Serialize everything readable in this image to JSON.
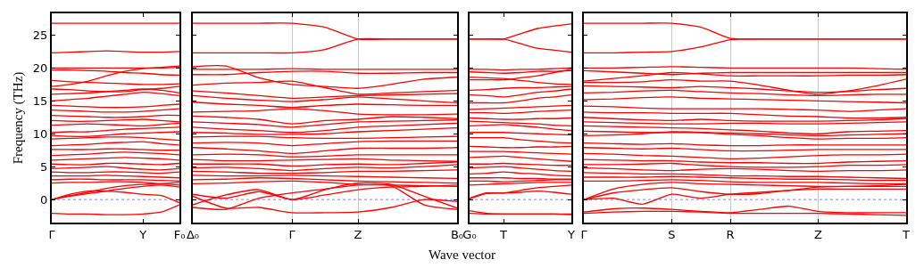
{
  "chart_data": [
    {
      "type": "line",
      "ylabel": "Frequency (THz)",
      "categories": [
        "Γ",
        null,
        null,
        null,
        null,
        "Y",
        null,
        "F₀"
      ],
      "ylim": [
        -3.5,
        28.3
      ],
      "yticks": [
        0,
        5,
        10,
        15,
        20,
        25
      ],
      "ref_lines": [
        {
          "axis": "y",
          "value": 0,
          "label": null,
          "color": "#8080ff",
          "line_style": "dotted"
        }
      ],
      "line_style": "solid",
      "series": [
        {
          "color": "#ff0000",
          "values": [
            26.8,
            26.8,
            26.8,
            26.8,
            26.8,
            26.8,
            26.8,
            26.8
          ]
        },
        {
          "color": "#ff0000",
          "values": [
            22.3,
            22.4,
            22.5,
            22.6,
            22.5,
            22.4,
            22.4,
            22.5
          ]
        },
        {
          "color": "#ff0000",
          "values": [
            20,
            20,
            20,
            20,
            20,
            20,
            20,
            20.1
          ]
        },
        {
          "color": "#ff0000",
          "values": [
            19.7,
            19.7,
            19.6,
            19.5,
            19.3,
            19.2,
            19,
            18.9
          ]
        },
        {
          "color": "#ff0000",
          "values": [
            17.2,
            17.5,
            18,
            18.8,
            19.5,
            19.9,
            20.1,
            20.3
          ]
        },
        {
          "color": "#ff0000",
          "values": [
            18.1,
            17.9,
            17.8,
            17.7,
            17.6,
            17.5,
            17.5,
            17.6
          ]
        },
        {
          "color": "#ff0000",
          "values": [
            16.8,
            16.7,
            16.5,
            16.4,
            16.4,
            16.7,
            16.9,
            17.2
          ]
        },
        {
          "color": "#ff0000",
          "values": [
            16,
            16.1,
            16.2,
            16.4,
            16.6,
            16.8,
            16.6,
            16.2
          ]
        },
        {
          "color": "#ff0000",
          "values": [
            15,
            15.2,
            15.4,
            15.7,
            16,
            16.3,
            16.1,
            15.8
          ]
        },
        {
          "color": "#ff0000",
          "values": [
            14.3,
            14.2,
            14.1,
            14,
            14,
            14.1,
            14.3,
            14.5
          ]
        },
        {
          "color": "#ff0000",
          "values": [
            13.6,
            13.5,
            13.4,
            13.3,
            13.3,
            13.4,
            13.6,
            13.8
          ]
        },
        {
          "color": "#ff0000",
          "values": [
            12.8,
            12.7,
            12.6,
            12.5,
            12.5,
            12.6,
            12.8,
            12.8
          ]
        },
        {
          "color": "#ff0000",
          "values": [
            12,
            11.9,
            11.9,
            12,
            12.1,
            12.2,
            12,
            11.8
          ]
        },
        {
          "color": "#ff0000",
          "values": [
            11.3,
            11.4,
            11.5,
            11.4,
            11.3,
            11.2,
            11.4,
            11.6
          ]
        },
        {
          "color": "#ff0000",
          "values": [
            10.2,
            10.3,
            10.3,
            10.5,
            10.7,
            10.8,
            10.9,
            11
          ]
        },
        {
          "color": "#ff0000",
          "values": [
            9.7,
            9.6,
            9.6,
            9.8,
            10,
            10.1,
            10.2,
            10.3
          ]
        },
        {
          "color": "#ff0000",
          "values": [
            9.2,
            9.3,
            9.4,
            9.5,
            9.5,
            9.4,
            9.2,
            9
          ]
        },
        {
          "color": "#ff0000",
          "values": [
            8.2,
            8.3,
            8.4,
            8.6,
            8.7,
            8.8,
            8.5,
            8.3
          ]
        },
        {
          "color": "#ff0000",
          "values": [
            7.6,
            7.6,
            7.6,
            7.7,
            7.7,
            7.6,
            7.5,
            7.5
          ]
        },
        {
          "color": "#ff0000",
          "values": [
            6.7,
            6.8,
            6.9,
            7.1,
            7.2,
            7.1,
            7,
            6.8
          ]
        },
        {
          "color": "#ff0000",
          "values": [
            6,
            6.1,
            6.2,
            6.3,
            6.4,
            6.3,
            6.2,
            6
          ]
        },
        {
          "color": "#ff0000",
          "values": [
            5.4,
            5.3,
            5.3,
            5.5,
            5.5,
            5.4,
            5.3,
            5.5
          ]
        },
        {
          "color": "#ff0000",
          "values": [
            4.7,
            4.8,
            4.9,
            5,
            4.8,
            4.6,
            4.5,
            4.7
          ]
        },
        {
          "color": "#ff0000",
          "values": [
            4.2,
            4.1,
            4.1,
            4.2,
            4.2,
            4.1,
            4,
            4.2
          ]
        },
        {
          "color": "#ff0000",
          "values": [
            3.6,
            3.6,
            3.6,
            3.7,
            3.6,
            3.5,
            3.4,
            3.3
          ]
        },
        {
          "color": "#ff0000",
          "values": [
            3,
            3.1,
            3.1,
            3,
            3,
            3,
            2.9,
            2.8
          ]
        },
        {
          "color": "#ff0000",
          "values": [
            2.5,
            2.6,
            2.6,
            2.7,
            2.7,
            2.6,
            2.4,
            2.2
          ]
        },
        {
          "color": "#ff0000",
          "values": [
            0,
            0.6,
            1.1,
            1.7,
            2.1,
            2.3,
            2.4,
            2.6
          ]
        },
        {
          "color": "#ff0000",
          "values": [
            0,
            0.5,
            0.9,
            1.3,
            1.7,
            2,
            2.2,
            1.9
          ]
        },
        {
          "color": "#ff0000",
          "values": [
            0,
            0.8,
            1.3,
            1.3,
            1.1,
            0.8,
            0.6,
            -0.5
          ]
        },
        {
          "color": "#ff0000",
          "values": [
            -2.1,
            -2.2,
            -2.2,
            -2.3,
            -2.3,
            -2.2,
            -1.9,
            -0.8
          ]
        }
      ]
    },
    {
      "type": "line",
      "xlabel": "Wave vector",
      "categories": [
        "Δ₀",
        null,
        null,
        "Γ",
        null,
        "Z",
        null,
        null,
        "B₀"
      ],
      "ylim": [
        -3.5,
        28.3
      ],
      "yticks": [
        0,
        5,
        10,
        15,
        20,
        25
      ],
      "tick_labels": "x",
      "grid": "x",
      "ref_lines": [
        {
          "axis": "y",
          "value": 0,
          "label": null,
          "color": "#8080ff",
          "line_style": "dotted"
        }
      ],
      "line_style": "solid",
      "series": [
        {
          "color": "#ff0000",
          "values": [
            26.8,
            26.8,
            26.8,
            26.8,
            26.2,
            24.4,
            24.4,
            24.4,
            24.4
          ]
        },
        {
          "color": "#ff0000",
          "values": [
            22.3,
            22.3,
            22.3,
            22.3,
            22.8,
            24.4,
            24.4,
            24.4,
            24.4
          ]
        },
        {
          "color": "#ff0000",
          "values": [
            20.2,
            20.3,
            18.5,
            17.5,
            17.2,
            16.9,
            17.5,
            18.3,
            18.6
          ]
        },
        {
          "color": "#ff0000",
          "values": [
            19.8,
            19.8,
            19.8,
            19.9,
            19.8,
            19.8,
            19.8,
            19.8,
            19.8
          ]
        },
        {
          "color": "#ff0000",
          "values": [
            19,
            19,
            19.3,
            19.5,
            19.5,
            19.2,
            19.2,
            19.3,
            19.3
          ]
        },
        {
          "color": "#ff0000",
          "values": [
            17.4,
            17.7,
            17.8,
            18,
            17,
            16,
            16.2,
            16.4,
            16.6
          ]
        },
        {
          "color": "#ff0000",
          "values": [
            16.5,
            16.2,
            15.8,
            15.4,
            15.6,
            15.8,
            15.9,
            16,
            16.1
          ]
        },
        {
          "color": "#ff0000",
          "values": [
            15.8,
            15.4,
            15.1,
            14.9,
            15.2,
            15.6,
            15.3,
            15,
            14.7
          ]
        },
        {
          "color": "#ff0000",
          "values": [
            14.8,
            14.5,
            14.3,
            14,
            14.3,
            14.5,
            14.4,
            14.3,
            14.3
          ]
        },
        {
          "color": "#ff0000",
          "values": [
            13.3,
            13.4,
            13.5,
            13.8,
            13.5,
            13,
            12.9,
            12.9,
            13
          ]
        },
        {
          "color": "#ff0000",
          "values": [
            12.7,
            12.5,
            12.2,
            11.5,
            12,
            12.2,
            12.6,
            12.5,
            12.3
          ]
        },
        {
          "color": "#ff0000",
          "values": [
            11.8,
            11.6,
            11.4,
            11,
            11.4,
            11.8,
            11.9,
            12,
            12.1
          ]
        },
        {
          "color": "#ff0000",
          "values": [
            11,
            10.7,
            10.5,
            10.2,
            10.5,
            11,
            11.2,
            11.4,
            11.6
          ]
        },
        {
          "color": "#ff0000",
          "values": [
            10.2,
            10.1,
            9.9,
            9.9,
            10,
            10.3,
            10.5,
            10.7,
            10.9
          ]
        },
        {
          "color": "#ff0000",
          "values": [
            9.5,
            9.6,
            9.6,
            9.4,
            9.3,
            9.3,
            9.4,
            9.5,
            9.6
          ]
        },
        {
          "color": "#ff0000",
          "values": [
            8.6,
            8.7,
            8.6,
            8.2,
            8.5,
            8.8,
            8.9,
            8.9,
            8.9
          ]
        },
        {
          "color": "#ff0000",
          "values": [
            7.9,
            7.7,
            7.4,
            7,
            7.4,
            7.8,
            7.8,
            7.8,
            7.9
          ]
        },
        {
          "color": "#ff0000",
          "values": [
            6.8,
            6.9,
            6.8,
            6.5,
            6.6,
            6.8,
            6.8,
            6.8,
            6.8
          ]
        },
        {
          "color": "#ff0000",
          "values": [
            6.1,
            5.9,
            5.9,
            6,
            6.1,
            6.2,
            6,
            5.9,
            5.8
          ]
        },
        {
          "color": "#ff0000",
          "values": [
            5.4,
            5.4,
            5.4,
            5.1,
            5.3,
            5.4,
            5.3,
            5.5,
            5.7
          ]
        },
        {
          "color": "#ff0000",
          "values": [
            4.8,
            4.9,
            4.7,
            4.4,
            4.7,
            4.9,
            4.8,
            5,
            5.3
          ]
        },
        {
          "color": "#ff0000",
          "values": [
            4.3,
            4.2,
            4,
            4,
            4.1,
            4.3,
            4.3,
            4.4,
            4.5
          ]
        },
        {
          "color": "#ff0000",
          "values": [
            3.7,
            3.6,
            3.6,
            3.7,
            3.6,
            3.5,
            3.4,
            3.3,
            3.2
          ]
        },
        {
          "color": "#ff0000",
          "values": [
            3,
            3.1,
            3.3,
            3.2,
            3,
            2.8,
            2.7,
            2.6,
            2.5
          ]
        },
        {
          "color": "#ff0000",
          "values": [
            2.4,
            2.5,
            2.7,
            2.8,
            2.6,
            2.3,
            2.2,
            2.1,
            2
          ]
        },
        {
          "color": "#ff0000",
          "values": [
            0.8,
            0.2,
            1.2,
            0,
            0.7,
            1.5,
            1.9,
            2,
            2.2
          ]
        },
        {
          "color": "#ff0000",
          "values": [
            -0.8,
            0.7,
            1.5,
            0,
            1.5,
            2.5,
            2.3,
            0.5,
            -1.3
          ]
        },
        {
          "color": "#ff0000",
          "values": [
            0.5,
            -1.3,
            -1.2,
            -2,
            -2,
            -1.9,
            -1.2,
            0,
            -0.3
          ]
        },
        {
          "color": "#ff0000",
          "values": [
            -1.2,
            -1.5,
            0.2,
            1,
            1.6,
            2.2,
            2.1,
            -0.8,
            -1.5
          ]
        }
      ]
    },
    {
      "type": "line",
      "categories": [
        "G₀",
        null,
        "T",
        null,
        null,
        null,
        "Y"
      ],
      "ylim": [
        -3.5,
        28.3
      ],
      "yticks": [
        0,
        5,
        10,
        15,
        20,
        25
      ],
      "tick_labels": "x",
      "ref_lines": [
        {
          "axis": "y",
          "value": 0,
          "label": null,
          "color": "#8080ff",
          "line_style": "dotted"
        }
      ],
      "line_style": "solid",
      "series": [
        {
          "color": "#ff0000",
          "values": [
            24.4,
            24.4,
            24.4,
            25.2,
            26,
            26.4,
            26.7
          ]
        },
        {
          "color": "#ff0000",
          "values": [
            24.4,
            24.4,
            24.4,
            23.7,
            23,
            22.7,
            22.4
          ]
        },
        {
          "color": "#ff0000",
          "values": [
            19.8,
            19.8,
            19.7,
            19.8,
            19.8,
            19.9,
            20
          ]
        },
        {
          "color": "#ff0000",
          "values": [
            19.4,
            19.3,
            19.2,
            19.3,
            19.5,
            19.5,
            19.6
          ]
        },
        {
          "color": "#ff0000",
          "values": [
            18.6,
            18.5,
            18.4,
            18.1,
            17.8,
            17.6,
            17.5
          ]
        },
        {
          "color": "#ff0000",
          "values": [
            18.2,
            18.2,
            18.2,
            18.5,
            18.8,
            19.3,
            19.8
          ]
        },
        {
          "color": "#ff0000",
          "values": [
            16.6,
            16.7,
            16.9,
            17,
            17,
            17.1,
            17.2
          ]
        },
        {
          "color": "#ff0000",
          "values": [
            15.9,
            15.8,
            15.6,
            15.9,
            16.3,
            16.5,
            16.8
          ]
        },
        {
          "color": "#ff0000",
          "values": [
            14.7,
            14.7,
            14.7,
            15,
            15.4,
            15.6,
            15.9
          ]
        },
        {
          "color": "#ff0000",
          "values": [
            13.7,
            13.8,
            13.9,
            14,
            14.1,
            14.2,
            14.3
          ]
        },
        {
          "color": "#ff0000",
          "values": [
            13.2,
            13.2,
            13.1,
            13.2,
            13.4,
            13.5,
            13.6
          ]
        },
        {
          "color": "#ff0000",
          "values": [
            12.4,
            12.3,
            12.2,
            12.2,
            12.3,
            12.3,
            12.4
          ]
        },
        {
          "color": "#ff0000",
          "values": [
            11.9,
            11.8,
            11.7,
            11.6,
            11.5,
            11.3,
            11.2
          ]
        },
        {
          "color": "#ff0000",
          "values": [
            11.2,
            11.3,
            11.4,
            11.2,
            11,
            10.7,
            10.5
          ]
        },
        {
          "color": "#ff0000",
          "values": [
            10.2,
            10.2,
            10.2,
            10.1,
            10,
            9.9,
            9.8
          ]
        },
        {
          "color": "#ff0000",
          "values": [
            9.4,
            9.4,
            9.4,
            9.1,
            8.9,
            8.7,
            8.6
          ]
        },
        {
          "color": "#ff0000",
          "values": [
            8.1,
            8,
            7.9,
            7.9,
            8,
            8,
            8.1
          ]
        },
        {
          "color": "#ff0000",
          "values": [
            7.3,
            7.3,
            7.3,
            7.2,
            7.1,
            7,
            6.9
          ]
        },
        {
          "color": "#ff0000",
          "values": [
            6.4,
            6.5,
            6.6,
            6.4,
            6.2,
            6,
            5.8
          ]
        },
        {
          "color": "#ff0000",
          "values": [
            5.4,
            5.4,
            5.5,
            5.4,
            5.3,
            5.2,
            5.2
          ]
        },
        {
          "color": "#ff0000",
          "values": [
            4.8,
            4.9,
            5,
            4.8,
            4.6,
            4.4,
            4.3
          ]
        },
        {
          "color": "#ff0000",
          "values": [
            3.9,
            4,
            4.2,
            4,
            3.9,
            3.7,
            3.6
          ]
        },
        {
          "color": "#ff0000",
          "values": [
            3.3,
            3.3,
            3.3,
            3.2,
            3.2,
            3.1,
            3.1
          ]
        },
        {
          "color": "#ff0000",
          "values": [
            2.8,
            2.8,
            2.7,
            2.8,
            2.9,
            3,
            3
          ]
        },
        {
          "color": "#ff0000",
          "values": [
            2.2,
            2.3,
            2.4,
            2.5,
            2.6,
            2.6,
            2.6
          ]
        },
        {
          "color": "#ff0000",
          "values": [
            0.2,
            1,
            1,
            1.4,
            1.8,
            2,
            2.2
          ]
        },
        {
          "color": "#ff0000",
          "values": [
            0.1,
            0.9,
            1,
            1.1,
            1.3,
            1.1,
            0.8
          ]
        },
        {
          "color": "#ff0000",
          "values": [
            -1.7,
            -2.1,
            -2.2,
            -2.2,
            -2.2,
            -2.2,
            -2.2
          ]
        },
        {
          "color": "#ff0000",
          "values": [
            -2.1,
            -2.2,
            -2.2,
            -2.2,
            -2.2,
            -2.2,
            -2.3
          ]
        }
      ]
    },
    {
      "type": "line",
      "categories": [
        "Γ",
        null,
        null,
        "S",
        null,
        "R",
        null,
        null,
        "Z",
        null,
        null,
        "T"
      ],
      "ylim": [
        -3.5,
        28.3
      ],
      "yticks": [
        0,
        5,
        10,
        15,
        20,
        25
      ],
      "tick_labels": "x",
      "grid": "x",
      "ref_lines": [
        {
          "axis": "y",
          "value": 0,
          "label": null,
          "color": "#8080ff",
          "line_style": "dotted"
        }
      ],
      "line_style": "solid",
      "series": [
        {
          "color": "#ff0000",
          "values": [
            26.8,
            26.8,
            26.8,
            26.8,
            26.2,
            24.5,
            24.4,
            24.4,
            24.4,
            24.4,
            24.4,
            24.4
          ]
        },
        {
          "color": "#ff0000",
          "values": [
            22.3,
            22.3,
            22.4,
            22.5,
            23.2,
            24.3,
            24.4,
            24.4,
            24.4,
            24.4,
            24.4,
            24.4
          ]
        },
        {
          "color": "#ff0000",
          "values": [
            20,
            20,
            20.1,
            20.2,
            20.1,
            20,
            20,
            20,
            20,
            20,
            19.9,
            19.8
          ]
        },
        {
          "color": "#ff0000",
          "values": [
            19.6,
            19.4,
            19.2,
            19,
            19.2,
            19.3,
            19.3,
            19.3,
            19.3,
            19.3,
            19.3,
            19.3
          ]
        },
        {
          "color": "#ff0000",
          "values": [
            18,
            18.4,
            18.8,
            19.3,
            19.1,
            18.8,
            18.8,
            18.8,
            18.8,
            18.9,
            18.9,
            19
          ]
        },
        {
          "color": "#ff0000",
          "values": [
            17.8,
            17.8,
            17.9,
            18.2,
            18,
            18,
            17.4,
            16.6,
            16,
            16.5,
            17.3,
            18.3
          ]
        },
        {
          "color": "#ff0000",
          "values": [
            17.3,
            17.2,
            17.1,
            17,
            17.2,
            17,
            16.8,
            16.5,
            16.3,
            16.4,
            16.7,
            16.9
          ]
        },
        {
          "color": "#ff0000",
          "values": [
            16.2,
            16.3,
            16.5,
            16.6,
            16.4,
            16.2,
            16.1,
            15.9,
            15.8,
            15.9,
            16,
            16
          ]
        },
        {
          "color": "#ff0000",
          "values": [
            15.2,
            15.3,
            15.5,
            15.6,
            15.4,
            15.3,
            15.2,
            15.1,
            15,
            14.9,
            14.8,
            14.7
          ]
        },
        {
          "color": "#ff0000",
          "values": [
            14.2,
            14.1,
            13.9,
            13.8,
            13.8,
            13.8,
            13.8,
            13.7,
            13.6,
            13.4,
            13.6,
            13.8
          ]
        },
        {
          "color": "#ff0000",
          "values": [
            13.3,
            13.2,
            13.2,
            13.1,
            13.1,
            13.1,
            12.9,
            12.7,
            12.6,
            12.4,
            12.4,
            12.5
          ]
        },
        {
          "color": "#ff0000",
          "values": [
            12.5,
            12.3,
            12.1,
            12,
            12.2,
            12,
            11.9,
            11.9,
            11.9,
            12,
            12.1,
            12.3
          ]
        },
        {
          "color": "#ff0000",
          "values": [
            11.8,
            11.7,
            11.6,
            11.5,
            11.5,
            11.6,
            11.6,
            11.5,
            11.5,
            11.6,
            11.7,
            11.8
          ]
        },
        {
          "color": "#ff0000",
          "values": [
            11.2,
            11.1,
            11,
            10.9,
            10.8,
            10.6,
            10.4,
            10.1,
            10,
            10.3,
            10.4,
            10.5
          ]
        },
        {
          "color": "#ff0000",
          "values": [
            10.4,
            10.3,
            10.2,
            10.2,
            10.2,
            10.1,
            10,
            9.8,
            9.7,
            9.8,
            9.9,
            10
          ]
        },
        {
          "color": "#ff0000",
          "values": [
            9.7,
            9.8,
            10,
            10.3,
            10.2,
            9.9,
            9.7,
            9.4,
            9.2,
            9.3,
            9.3,
            9.4
          ]
        },
        {
          "color": "#ff0000",
          "values": [
            8.6,
            8.5,
            8.4,
            8.5,
            8.3,
            8.2,
            8.2,
            8.3,
            8.3,
            8.3,
            8.3,
            8.3
          ]
        },
        {
          "color": "#ff0000",
          "values": [
            7.9,
            7.8,
            7.7,
            7.8,
            7.6,
            7.4,
            7.4,
            7.5,
            7.6,
            7.6,
            7.6,
            7.6
          ]
        },
        {
          "color": "#ff0000",
          "values": [
            7,
            6.9,
            6.7,
            6.6,
            6.4,
            6.2,
            6.3,
            6.5,
            6.7,
            6.8,
            6.8,
            6.9
          ]
        },
        {
          "color": "#ff0000",
          "values": [
            6.1,
            6,
            5.9,
            5.9,
            5.7,
            5.6,
            5.6,
            5.5,
            5.5,
            5.7,
            5.8,
            5.9
          ]
        },
        {
          "color": "#ff0000",
          "values": [
            5.3,
            5.3,
            5.4,
            5.5,
            5.2,
            5,
            4.9,
            4.9,
            5,
            5.2,
            5.2,
            5.3
          ]
        },
        {
          "color": "#ff0000",
          "values": [
            4.8,
            4.7,
            4.5,
            4.4,
            4.6,
            4.7,
            4.6,
            4.4,
            4.3,
            4.4,
            4.4,
            4.5
          ]
        },
        {
          "color": "#ff0000",
          "values": [
            4.1,
            4,
            3.9,
            3.9,
            3.8,
            3.6,
            3.6,
            3.5,
            3.5,
            3.4,
            3.3,
            3.2
          ]
        },
        {
          "color": "#ff0000",
          "values": [
            3.4,
            3.4,
            3.4,
            3.5,
            3.4,
            3.3,
            3.2,
            3.1,
            3.1,
            3,
            2.9,
            2.9
          ]
        },
        {
          "color": "#ff0000",
          "values": [
            2.8,
            2.8,
            2.9,
            3,
            2.9,
            2.7,
            2.6,
            2.6,
            2.6,
            2.5,
            2.4,
            2.4
          ]
        },
        {
          "color": "#ff0000",
          "values": [
            0,
            1.6,
            2.3,
            2.6,
            2.4,
            2.3,
            2.2,
            2.1,
            2,
            2,
            2.1,
            2.3
          ]
        },
        {
          "color": "#ff0000",
          "values": [
            0,
            1,
            1.5,
            1.8,
            1.2,
            0.8,
            0.9,
            1.4,
            1.9,
            2,
            2,
            2
          ]
        },
        {
          "color": "#ff0000",
          "values": [
            0,
            0.2,
            -0.7,
            0.8,
            0.2,
            0.8,
            1.1,
            1.4,
            1.6,
            1.6,
            1.6,
            1.6
          ]
        },
        {
          "color": "#ff0000",
          "values": [
            -1.9,
            -1.4,
            -1.3,
            -1.5,
            -1.8,
            -2,
            -1.5,
            -1,
            -1.8,
            -2,
            -2,
            -2
          ]
        },
        {
          "color": "#ff0000",
          "values": [
            -2.1,
            -1.9,
            -1.8,
            -1.8,
            -1.9,
            -2.1,
            -2.1,
            -2.1,
            -2.1,
            -2.2,
            -2.3,
            -2.4
          ]
        }
      ]
    }
  ]
}
